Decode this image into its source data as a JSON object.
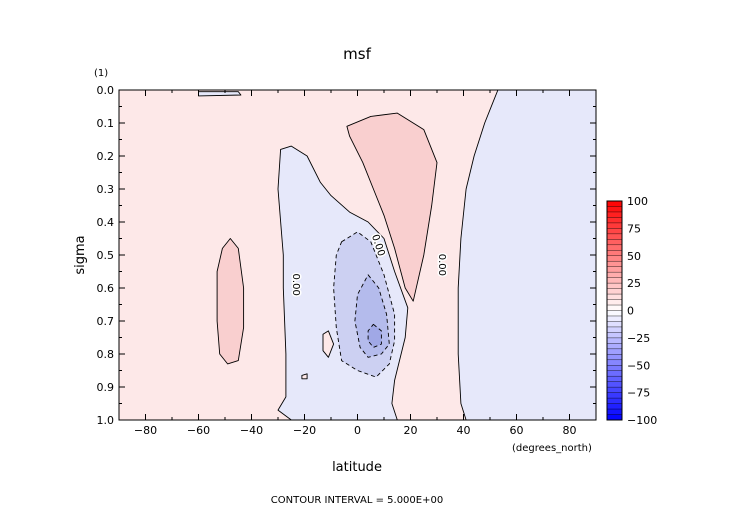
{
  "chart_data": {
    "type": "heatmap",
    "title": "msf",
    "xlabel": "latitude",
    "ylabel": "sigma",
    "x_units": "(degrees_north)",
    "y_units": "(1)",
    "xlim": [
      -90,
      90
    ],
    "ylim": [
      0.0,
      1.0
    ],
    "y_inverted": true,
    "x_ticks": [
      -80,
      -60,
      -40,
      -20,
      0,
      20,
      40,
      60,
      80
    ],
    "y_ticks": [
      0.0,
      0.1,
      0.2,
      0.3,
      0.4,
      0.5,
      0.6,
      0.7,
      0.8,
      0.9,
      1.0
    ],
    "x_tick_labels": [
      "−80",
      "−60",
      "−40",
      "−20",
      "0",
      "20",
      "40",
      "60",
      "80"
    ],
    "y_tick_labels": [
      "0.0",
      "0.1",
      "0.2",
      "0.3",
      "0.4",
      "0.5",
      "0.6",
      "0.7",
      "0.8",
      "0.9",
      "1.0"
    ],
    "contour_labels": [
      {
        "text": "0.00",
        "x": -23,
        "y": 0.59,
        "rotation": 90
      },
      {
        "text": "0.00",
        "x": 8,
        "y": 0.47,
        "rotation": 72
      },
      {
        "text": "0.00",
        "x": 32,
        "y": 0.53,
        "rotation": 90
      }
    ],
    "caption": "CONTOUR INTERVAL = 5.000E+00",
    "colorbar": {
      "vmin": -100,
      "vmax": 100,
      "ticks": [
        100,
        75,
        50,
        25,
        0,
        -25,
        -50,
        -75,
        -100
      ],
      "tick_labels": [
        "100",
        "75",
        "50",
        "25",
        "0",
        "−25",
        "−50",
        "−75",
        "−100"
      ],
      "min_color": "#0000ff",
      "mid_color": "#ffffff",
      "max_color": "#ff0000",
      "levels": 40
    },
    "regions": [
      {
        "sign": "positive",
        "level": 1,
        "color": "#fde8e8",
        "shape": "background",
        "points": [
          [
            -90,
            0
          ],
          [
            90,
            0
          ],
          [
            90,
            1
          ],
          [
            -90,
            1
          ]
        ]
      },
      {
        "sign": "negative",
        "level": 1,
        "color": "#e6e8fa",
        "points": [
          [
            -29,
            0.18
          ],
          [
            -25,
            0.17
          ],
          [
            -19,
            0.2
          ],
          [
            -14,
            0.28
          ],
          [
            -10,
            0.32
          ],
          [
            -3,
            0.37
          ],
          [
            4,
            0.4
          ],
          [
            10,
            0.45
          ],
          [
            14,
            0.55
          ],
          [
            19,
            0.66
          ],
          [
            18,
            0.75
          ],
          [
            14,
            0.88
          ],
          [
            13,
            0.95
          ],
          [
            15,
            1.0
          ],
          [
            -25,
            1.0
          ],
          [
            -30,
            0.97
          ],
          [
            -27,
            0.93
          ],
          [
            -27,
            0.8
          ],
          [
            -28,
            0.6
          ],
          [
            -28,
            0.5
          ],
          [
            -30,
            0.3
          ]
        ]
      },
      {
        "sign": "negative",
        "level": 2,
        "color": "#ccd0f2",
        "dashed": true,
        "points": [
          [
            -6,
            0.46
          ],
          [
            0,
            0.43
          ],
          [
            5,
            0.46
          ],
          [
            10,
            0.56
          ],
          [
            14,
            0.68
          ],
          [
            14,
            0.76
          ],
          [
            12,
            0.83
          ],
          [
            7,
            0.87
          ],
          [
            0,
            0.85
          ],
          [
            -6,
            0.82
          ],
          [
            -8,
            0.72
          ],
          [
            -9,
            0.6
          ],
          [
            -8,
            0.5
          ]
        ]
      },
      {
        "sign": "negative",
        "level": 3,
        "color": "#b4bbec",
        "dashed": true,
        "points": [
          [
            4,
            0.56
          ],
          [
            8,
            0.6
          ],
          [
            11,
            0.68
          ],
          [
            12,
            0.77
          ],
          [
            9,
            0.8
          ],
          [
            4,
            0.81
          ],
          [
            1,
            0.78
          ],
          [
            -1,
            0.7
          ],
          [
            0,
            0.62
          ]
        ]
      },
      {
        "sign": "negative",
        "level": 4,
        "color": "#a0a8e6",
        "dashed": true,
        "points": [
          [
            6,
            0.71
          ],
          [
            9,
            0.73
          ],
          [
            9,
            0.77
          ],
          [
            6,
            0.78
          ],
          [
            4,
            0.76
          ],
          [
            4,
            0.73
          ]
        ]
      },
      {
        "sign": "negative",
        "level": 1,
        "color": "#e6e8fa",
        "points": [
          [
            53,
            0.0
          ],
          [
            90,
            0.0
          ],
          [
            90,
            1.0
          ],
          [
            41,
            1.0
          ],
          [
            39,
            0.95
          ],
          [
            38,
            0.8
          ],
          [
            38,
            0.6
          ],
          [
            39,
            0.45
          ],
          [
            41,
            0.3
          ],
          [
            44,
            0.2
          ],
          [
            48,
            0.1
          ],
          [
            51,
            0.04
          ]
        ]
      },
      {
        "sign": "positive",
        "level": 2,
        "color": "#f9cfcf",
        "points": [
          [
            -4,
            0.11
          ],
          [
            5,
            0.08
          ],
          [
            15,
            0.07
          ],
          [
            25,
            0.12
          ],
          [
            30,
            0.22
          ],
          [
            28,
            0.35
          ],
          [
            25,
            0.5
          ],
          [
            21,
            0.64
          ],
          [
            18,
            0.6
          ],
          [
            14,
            0.48
          ],
          [
            10,
            0.38
          ],
          [
            6,
            0.3
          ],
          [
            2,
            0.22
          ],
          [
            -3,
            0.14
          ]
        ]
      },
      {
        "sign": "positive",
        "level": 2,
        "color": "#f9cfcf",
        "points": [
          [
            -48,
            0.45
          ],
          [
            -45,
            0.48
          ],
          [
            -43,
            0.6
          ],
          [
            -43,
            0.72
          ],
          [
            -45,
            0.82
          ],
          [
            -49,
            0.83
          ],
          [
            -52,
            0.8
          ],
          [
            -53,
            0.7
          ],
          [
            -53,
            0.55
          ],
          [
            -51,
            0.48
          ]
        ]
      },
      {
        "sign": "negative",
        "level": 1,
        "color": "#e6e8fa",
        "points": [
          [
            -60,
            0.005
          ],
          [
            -45,
            0.005
          ],
          [
            -44,
            0.015
          ],
          [
            -60,
            0.018
          ]
        ]
      },
      {
        "sign": "positive",
        "level": 1,
        "color": "#fde8e8",
        "points": [
          [
            -13,
            0.74
          ],
          [
            -11,
            0.73
          ],
          [
            -9,
            0.77
          ],
          [
            -11,
            0.81
          ],
          [
            -13,
            0.79
          ]
        ]
      },
      {
        "sign": "positive",
        "level": 1,
        "color": "#fde8e8",
        "points": [
          [
            -21,
            0.865
          ],
          [
            -19,
            0.86
          ],
          [
            -19,
            0.875
          ],
          [
            -21,
            0.875
          ]
        ]
      }
    ]
  }
}
